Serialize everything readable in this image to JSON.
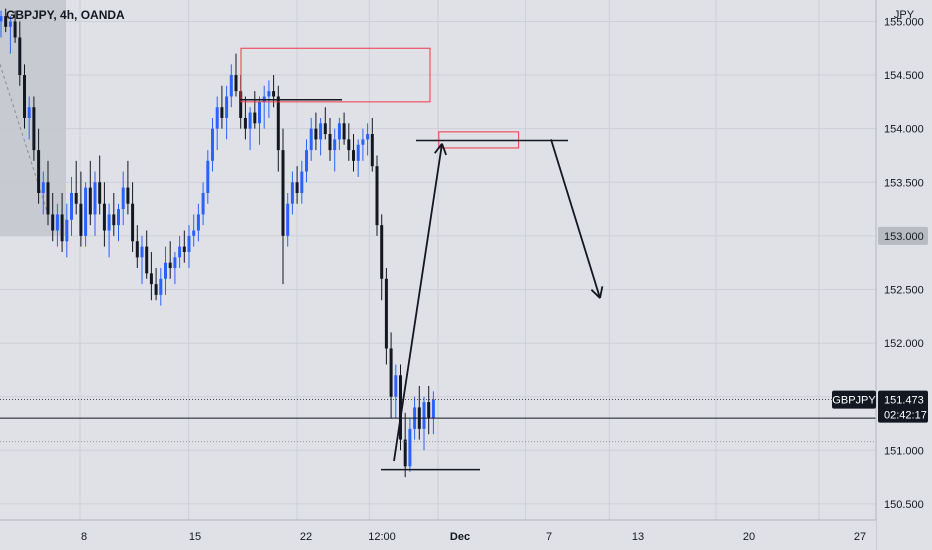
{
  "header": {
    "symbol_line": "GBPJPY, 4h, OANDA",
    "currency": "JPY"
  },
  "price_label": {
    "symbol": "GBPJPY",
    "price": "151.473",
    "countdown": "02:42:17"
  },
  "crosshair_label": "153.000",
  "colors": {
    "up": "#2962ff",
    "down": "#131722",
    "background": "#dfe1e6",
    "zone": "#f23645",
    "drawing": "#131722"
  },
  "chart_data": {
    "type": "candlestick",
    "y_axis": {
      "range": [
        150.35,
        155.2
      ],
      "ticks": [
        "150.500",
        "151.000",
        "151.500",
        "152.000",
        "152.500",
        "153.000",
        "153.500",
        "154.000",
        "154.500",
        "155.000"
      ],
      "tick_values": [
        150.5,
        151.0,
        151.5,
        152.0,
        152.5,
        153.0,
        153.5,
        154.0,
        154.5,
        155.0
      ]
    },
    "x_axis": {
      "range": [
        0,
        230
      ],
      "ticks": [
        "8",
        "15",
        "22",
        "12:00",
        "Dec",
        "7",
        "13",
        "20",
        "27"
      ],
      "tick_positions": [
        21,
        49.5,
        78,
        97,
        115,
        138,
        160,
        188,
        215
      ]
    },
    "candles_ohlc": [
      [
        155.0,
        155.1,
        154.85,
        155.05
      ],
      [
        155.05,
        155.12,
        154.9,
        154.95
      ],
      [
        154.95,
        155.05,
        154.7,
        155.0
      ],
      [
        155.0,
        155.1,
        154.8,
        154.85
      ],
      [
        154.85,
        155.0,
        154.4,
        154.5
      ],
      [
        154.5,
        154.6,
        154.0,
        154.1
      ],
      [
        154.1,
        154.3,
        153.9,
        154.2
      ],
      [
        154.2,
        154.3,
        153.7,
        153.8
      ],
      [
        153.8,
        154.0,
        153.3,
        153.4
      ],
      [
        153.4,
        153.6,
        153.2,
        153.5
      ],
      [
        153.5,
        153.7,
        153.1,
        153.2
      ],
      [
        153.2,
        153.4,
        152.95,
        153.05
      ],
      [
        153.05,
        153.3,
        152.9,
        153.2
      ],
      [
        153.2,
        153.4,
        152.85,
        152.95
      ],
      [
        152.95,
        153.3,
        152.8,
        153.15
      ],
      [
        153.15,
        153.55,
        153.0,
        153.4
      ],
      [
        153.4,
        153.7,
        153.2,
        153.3
      ],
      [
        153.3,
        153.6,
        152.9,
        153.0
      ],
      [
        153.0,
        153.5,
        152.9,
        153.45
      ],
      [
        153.45,
        153.7,
        153.1,
        153.2
      ],
      [
        153.2,
        153.6,
        153.0,
        153.5
      ],
      [
        153.5,
        153.75,
        153.2,
        153.3
      ],
      [
        153.3,
        153.5,
        152.9,
        153.05
      ],
      [
        153.05,
        153.3,
        152.8,
        153.2
      ],
      [
        153.2,
        153.4,
        153.0,
        153.1
      ],
      [
        153.1,
        153.3,
        152.95,
        153.25
      ],
      [
        153.25,
        153.6,
        153.1,
        153.45
      ],
      [
        153.45,
        153.7,
        153.2,
        153.3
      ],
      [
        153.3,
        153.5,
        152.85,
        152.95
      ],
      [
        152.95,
        153.1,
        152.7,
        152.8
      ],
      [
        152.8,
        153.0,
        152.55,
        152.9
      ],
      [
        152.9,
        153.05,
        152.6,
        152.65
      ],
      [
        152.65,
        152.85,
        152.4,
        152.55
      ],
      [
        152.55,
        152.7,
        152.4,
        152.45
      ],
      [
        152.45,
        152.7,
        152.35,
        152.6
      ],
      [
        152.6,
        152.9,
        152.45,
        152.75
      ],
      [
        152.75,
        152.95,
        152.6,
        152.7
      ],
      [
        152.7,
        152.85,
        152.55,
        152.8
      ],
      [
        152.8,
        153.0,
        152.7,
        152.9
      ],
      [
        152.9,
        153.05,
        152.75,
        152.85
      ],
      [
        152.85,
        153.1,
        152.7,
        153.0
      ],
      [
        153.0,
        153.2,
        152.9,
        153.05
      ],
      [
        153.05,
        153.3,
        152.95,
        153.2
      ],
      [
        153.2,
        153.5,
        153.1,
        153.4
      ],
      [
        153.4,
        153.8,
        153.3,
        153.7
      ],
      [
        153.7,
        154.1,
        153.6,
        154.0
      ],
      [
        154.0,
        154.3,
        153.8,
        154.2
      ],
      [
        154.2,
        154.4,
        154.0,
        154.1
      ],
      [
        154.1,
        154.4,
        153.9,
        154.3
      ],
      [
        154.3,
        154.6,
        154.2,
        154.5
      ],
      [
        154.5,
        154.7,
        154.3,
        154.35
      ],
      [
        154.35,
        154.5,
        154.0,
        154.1
      ],
      [
        154.1,
        154.3,
        153.9,
        154.0
      ],
      [
        154.0,
        154.2,
        153.8,
        154.15
      ],
      [
        154.15,
        154.35,
        154.0,
        154.05
      ],
      [
        154.05,
        154.3,
        153.85,
        154.25
      ],
      [
        154.25,
        154.4,
        154.0,
        154.3
      ],
      [
        154.3,
        154.45,
        154.1,
        154.35
      ],
      [
        154.35,
        154.5,
        154.2,
        154.3
      ],
      [
        154.3,
        154.4,
        153.6,
        153.8
      ],
      [
        153.8,
        154.0,
        152.55,
        153.0
      ],
      [
        153.0,
        153.4,
        152.9,
        153.3
      ],
      [
        153.3,
        153.6,
        153.2,
        153.5
      ],
      [
        153.5,
        153.65,
        153.3,
        153.4
      ],
      [
        153.4,
        153.7,
        153.3,
        153.6
      ],
      [
        153.6,
        153.9,
        153.5,
        153.8
      ],
      [
        153.8,
        154.1,
        153.7,
        154.0
      ],
      [
        154.0,
        154.15,
        153.8,
        153.9
      ],
      [
        153.9,
        154.1,
        153.75,
        154.05
      ],
      [
        154.05,
        154.2,
        153.9,
        153.95
      ],
      [
        153.95,
        154.1,
        153.7,
        153.8
      ],
      [
        153.8,
        154.0,
        153.6,
        153.9
      ],
      [
        153.9,
        154.1,
        153.8,
        154.05
      ],
      [
        154.05,
        154.15,
        153.85,
        153.9
      ],
      [
        153.9,
        154.05,
        153.7,
        153.8
      ],
      [
        153.8,
        153.95,
        153.6,
        153.7
      ],
      [
        153.7,
        153.9,
        153.55,
        153.85
      ],
      [
        153.85,
        154.0,
        153.7,
        153.9
      ],
      [
        153.9,
        154.05,
        153.75,
        153.95
      ],
      [
        153.95,
        154.1,
        153.6,
        153.65
      ],
      [
        153.65,
        153.75,
        153.0,
        153.1
      ],
      [
        153.1,
        153.2,
        152.4,
        152.6
      ],
      [
        152.6,
        152.7,
        151.8,
        151.95
      ],
      [
        151.95,
        152.1,
        151.3,
        151.5
      ],
      [
        151.5,
        151.8,
        151.3,
        151.7
      ],
      [
        151.7,
        151.8,
        151.0,
        151.1
      ],
      [
        151.1,
        151.35,
        150.75,
        150.85
      ],
      [
        150.85,
        151.3,
        150.8,
        151.2
      ],
      [
        151.2,
        151.5,
        151.1,
        151.4
      ],
      [
        151.4,
        151.6,
        151.1,
        151.2
      ],
      [
        151.2,
        151.5,
        151.0,
        151.45
      ],
      [
        151.45,
        151.6,
        151.15,
        151.3
      ],
      [
        151.3,
        151.55,
        151.15,
        151.473
      ]
    ],
    "annotations": {
      "zones": [
        {
          "x": [
            100,
            190
          ],
          "y": [
            154.25,
            154.75
          ]
        },
        {
          "x": [
            192,
            230
          ],
          "y": [
            153.82,
            153.97
          ]
        }
      ],
      "levels": [
        {
          "x": [
            100,
            148
          ],
          "y": 154.27
        },
        {
          "x": [
            182,
            248
          ],
          "y": 153.89
        },
        {
          "x": [
            166,
            210
          ],
          "y": 150.82
        },
        {
          "y": 151.3
        }
      ],
      "arrows": [
        {
          "from": [
            170,
            150.82
          ],
          "to": [
            193,
            153.88
          ]
        },
        {
          "from": [
            239,
            153.89
          ],
          "to": [
            262,
            152.42
          ]
        }
      ],
      "highlight_price": 153.0
    }
  }
}
